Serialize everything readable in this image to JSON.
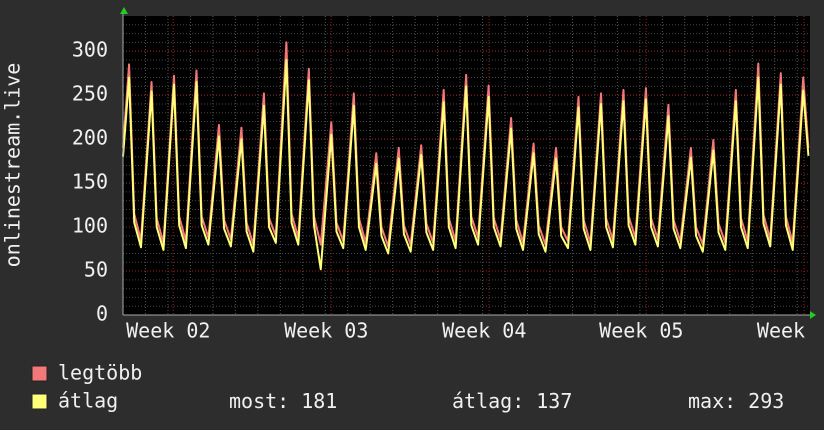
{
  "chart_data": {
    "type": "line",
    "ylabel": "onlinestream.live",
    "xlim": [
      0,
      30.57
    ],
    "ylim": [
      0,
      340
    ],
    "yticks": [
      0,
      50,
      100,
      150,
      200,
      250,
      300
    ],
    "xticks": [
      {
        "value": 2.23,
        "label": "Week 02"
      },
      {
        "value": 9.26,
        "label": "Week 03"
      },
      {
        "value": 16.29,
        "label": "Week 04"
      },
      {
        "value": 23.28,
        "label": "Week 05"
      },
      {
        "value": 30.3,
        "label": "Week"
      }
    ],
    "grid": true,
    "x": [
      0,
      0.27,
      0.5,
      0.8,
      1.27,
      1.5,
      1.8,
      2.27,
      2.5,
      2.8,
      3.27,
      3.5,
      3.8,
      4.27,
      4.5,
      4.8,
      5.27,
      5.5,
      5.8,
      6.27,
      6.5,
      6.8,
      7.27,
      7.5,
      7.8,
      8.27,
      8.5,
      8.8,
      9.27,
      9.5,
      9.8,
      10.27,
      10.5,
      10.8,
      11.27,
      11.5,
      11.8,
      12.27,
      12.5,
      12.8,
      13.27,
      13.5,
      13.8,
      14.27,
      14.5,
      14.8,
      15.27,
      15.5,
      15.8,
      16.27,
      16.5,
      16.8,
      17.27,
      17.5,
      17.8,
      18.27,
      18.5,
      18.8,
      19.27,
      19.5,
      19.8,
      20.27,
      20.5,
      20.8,
      21.27,
      21.5,
      21.8,
      22.27,
      22.5,
      22.8,
      23.27,
      23.5,
      23.8,
      24.27,
      24.5,
      24.8,
      25.27,
      25.5,
      25.8,
      26.27,
      26.5,
      26.8,
      27.27,
      27.5,
      27.8,
      28.27,
      28.5,
      28.8,
      29.27,
      29.5,
      29.8,
      30.27,
      30.5
    ],
    "series": [
      {
        "name": "legtöbb",
        "color": "#f47878",
        "values": [
          190,
          285,
          115,
          85,
          265,
          110,
          82,
          272,
          112,
          84,
          278,
          112,
          88,
          216,
          108,
          86,
          213,
          105,
          80,
          252,
          110,
          90,
          310,
          115,
          88,
          280,
          112,
          80,
          219,
          105,
          84,
          252,
          110,
          82,
          184,
          100,
          78,
          190,
          102,
          80,
          193,
          104,
          82,
          256,
          110,
          84,
          273,
          112,
          88,
          261,
          110,
          86,
          224,
          108,
          82,
          195,
          102,
          80,
          190,
          100,
          84,
          248,
          108,
          82,
          252,
          110,
          85,
          256,
          112,
          88,
          258,
          110,
          86,
          239,
          108,
          84,
          190,
          100,
          80,
          199,
          104,
          82,
          256,
          110,
          84,
          286,
          114,
          86,
          275,
          112,
          82,
          270,
          190
        ]
      },
      {
        "name": "átlag",
        "color": "#ffff78",
        "values": [
          180,
          270,
          105,
          77,
          254,
          100,
          74,
          262,
          102,
          76,
          265,
          102,
          80,
          203,
          98,
          78,
          200,
          95,
          72,
          238,
          100,
          82,
          290,
          105,
          80,
          267,
          102,
          52,
          205,
          95,
          76,
          238,
          100,
          74,
          172,
          90,
          70,
          178,
          92,
          72,
          182,
          94,
          74,
          242,
          100,
          76,
          260,
          102,
          80,
          248,
          100,
          78,
          212,
          98,
          74,
          184,
          92,
          72,
          178,
          90,
          76,
          236,
          98,
          74,
          240,
          100,
          77,
          243,
          102,
          80,
          245,
          100,
          78,
          226,
          98,
          76,
          179,
          90,
          72,
          187,
          94,
          74,
          243,
          100,
          76,
          270,
          104,
          78,
          262,
          102,
          74,
          255,
          181
        ]
      }
    ],
    "stats": [
      {
        "label": "most:",
        "value": 181
      },
      {
        "label": "átlag:",
        "value": 137
      },
      {
        "label": "max:",
        "value": 293
      }
    ]
  }
}
